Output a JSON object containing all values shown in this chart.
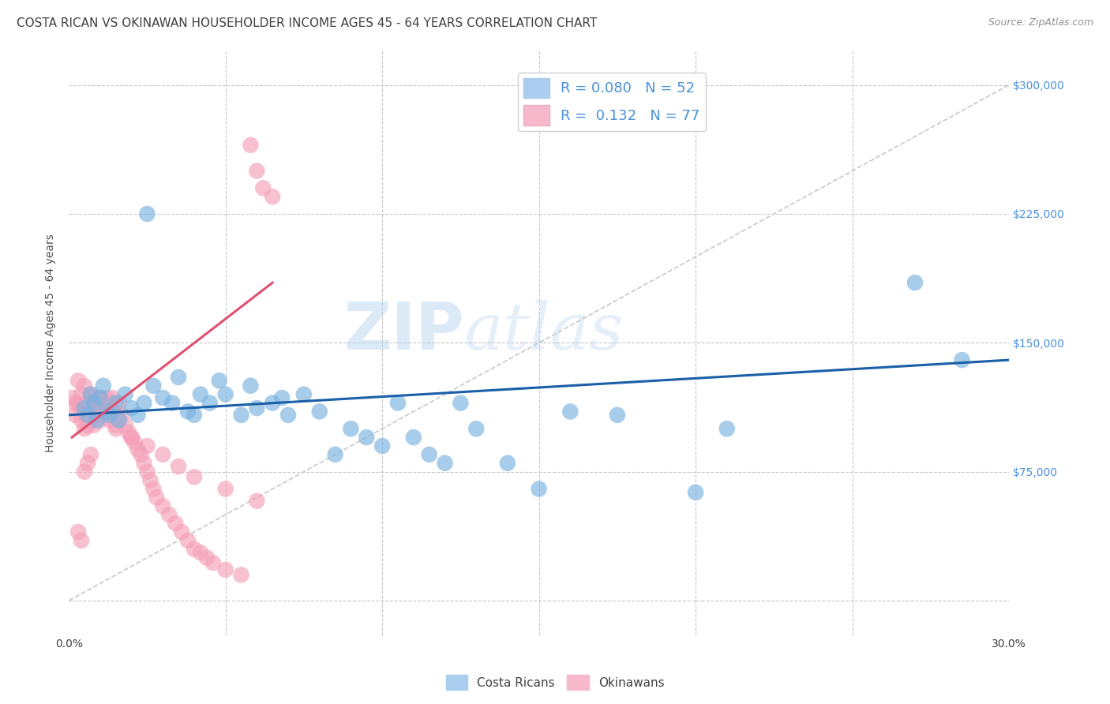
{
  "title": "COSTA RICAN VS OKINAWAN HOUSEHOLDER INCOME AGES 45 - 64 YEARS CORRELATION CHART",
  "source": "Source: ZipAtlas.com",
  "ylabel_label": "Householder Income Ages 45 - 64 years",
  "xlim": [
    0.0,
    0.3
  ],
  "ylim": [
    -20000,
    320000
  ],
  "watermark_zip": "ZIP",
  "watermark_atlas": "atlas",
  "blue_scatter_color": "#7ab3e0",
  "pink_scatter_color": "#f4a0b8",
  "blue_line_color": "#1a5fa8",
  "pink_line_color": "#e05070",
  "diagonal_color": "#c8c8c8",
  "grid_color": "#c8c8c8",
  "title_color": "#404040",
  "right_axis_color": "#4a90d9",
  "blue_legend_color": "#aacdf0",
  "pink_legend_color": "#f8b8cc",
  "blue_x": [
    0.005,
    0.006,
    0.007,
    0.008,
    0.009,
    0.01,
    0.011,
    0.012,
    0.013,
    0.015,
    0.016,
    0.018,
    0.02,
    0.022,
    0.024,
    0.025,
    0.027,
    0.03,
    0.033,
    0.035,
    0.038,
    0.04,
    0.042,
    0.045,
    0.048,
    0.05,
    0.055,
    0.058,
    0.06,
    0.065,
    0.068,
    0.07,
    0.075,
    0.08,
    0.085,
    0.09,
    0.095,
    0.1,
    0.105,
    0.11,
    0.115,
    0.12,
    0.125,
    0.13,
    0.14,
    0.15,
    0.16,
    0.175,
    0.2,
    0.21,
    0.27,
    0.285
  ],
  "blue_y": [
    112000,
    108000,
    120000,
    115000,
    105000,
    118000,
    125000,
    110000,
    108000,
    115000,
    105000,
    120000,
    112000,
    108000,
    115000,
    225000,
    125000,
    118000,
    115000,
    130000,
    110000,
    108000,
    120000,
    115000,
    128000,
    120000,
    108000,
    125000,
    112000,
    115000,
    118000,
    108000,
    120000,
    110000,
    85000,
    100000,
    95000,
    90000,
    115000,
    95000,
    85000,
    80000,
    115000,
    100000,
    80000,
    65000,
    110000,
    108000,
    63000,
    100000,
    185000,
    140000
  ],
  "pink_x": [
    0.001,
    0.002,
    0.002,
    0.003,
    0.003,
    0.004,
    0.004,
    0.004,
    0.005,
    0.005,
    0.005,
    0.006,
    0.006,
    0.006,
    0.007,
    0.007,
    0.007,
    0.008,
    0.008,
    0.008,
    0.009,
    0.009,
    0.01,
    0.01,
    0.01,
    0.011,
    0.011,
    0.012,
    0.012,
    0.013,
    0.013,
    0.014,
    0.014,
    0.015,
    0.015,
    0.016,
    0.016,
    0.017,
    0.018,
    0.019,
    0.02,
    0.021,
    0.022,
    0.023,
    0.024,
    0.025,
    0.026,
    0.027,
    0.028,
    0.03,
    0.032,
    0.034,
    0.036,
    0.038,
    0.04,
    0.042,
    0.044,
    0.046,
    0.05,
    0.055,
    0.058,
    0.06,
    0.062,
    0.065,
    0.003,
    0.004,
    0.005,
    0.006,
    0.007,
    0.025,
    0.03,
    0.035,
    0.04,
    0.05,
    0.06,
    0.02,
    0.015
  ],
  "pink_y": [
    118000,
    115000,
    108000,
    128000,
    115000,
    120000,
    112000,
    105000,
    125000,
    108000,
    100000,
    115000,
    108000,
    102000,
    120000,
    112000,
    105000,
    118000,
    110000,
    102000,
    115000,
    108000,
    118000,
    112000,
    105000,
    115000,
    108000,
    118000,
    110000,
    115000,
    105000,
    118000,
    110000,
    108000,
    100000,
    115000,
    105000,
    108000,
    102000,
    98000,
    95000,
    92000,
    88000,
    85000,
    80000,
    75000,
    70000,
    65000,
    60000,
    55000,
    50000,
    45000,
    40000,
    35000,
    30000,
    28000,
    25000,
    22000,
    18000,
    15000,
    265000,
    250000,
    240000,
    235000,
    40000,
    35000,
    75000,
    80000,
    85000,
    90000,
    85000,
    78000,
    72000,
    65000,
    58000,
    95000,
    102000
  ],
  "blue_line_x0": 0.0,
  "blue_line_x1": 0.3,
  "blue_line_y0": 108000,
  "blue_line_y1": 140000,
  "pink_line_x0": 0.001,
  "pink_line_x1": 0.065,
  "pink_line_y0": 95000,
  "pink_line_y1": 185000
}
